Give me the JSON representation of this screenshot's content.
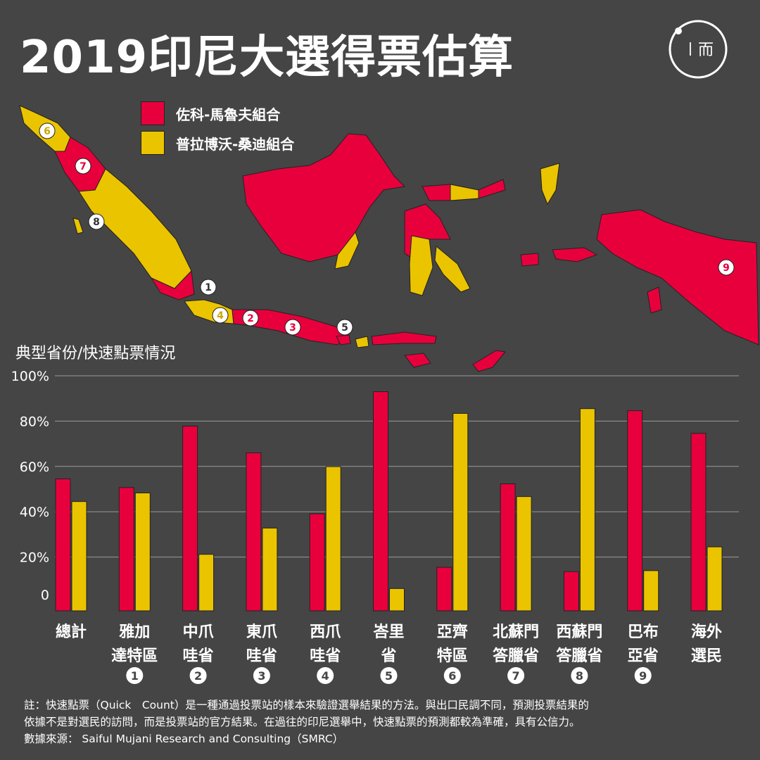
{
  "title": "2019印尼大選得票估算",
  "logo": {
    "icon": "initium-logo",
    "text": "〡而"
  },
  "colors": {
    "prabowo": "#e8003d",
    "jokowi": "#ebc400",
    "background": "#454545",
    "grid": "#9a9a9a"
  },
  "legend": [
    {
      "label": "佐科-馬魯夫組合",
      "color": "#e8003d"
    },
    {
      "label": "普拉博沃-桑迪組合",
      "color": "#ebc400"
    }
  ],
  "map_markers": [
    "1",
    "2",
    "3",
    "4",
    "5",
    "6",
    "7",
    "8",
    "9"
  ],
  "chart_subtitle": "典型省份/快速點票情況",
  "chart_data": {
    "type": "bar",
    "categories": [
      {
        "lines": [
          "總計"
        ],
        "marker": ""
      },
      {
        "lines": [
          "雅加",
          "達特區"
        ],
        "marker": "1"
      },
      {
        "lines": [
          "中爪",
          "哇省"
        ],
        "marker": "2"
      },
      {
        "lines": [
          "東爪",
          "哇省"
        ],
        "marker": "3"
      },
      {
        "lines": [
          "西爪",
          "哇省"
        ],
        "marker": "4"
      },
      {
        "lines": [
          "峇里",
          "省"
        ],
        "marker": "5"
      },
      {
        "lines": [
          "亞齊",
          "特區"
        ],
        "marker": "6"
      },
      {
        "lines": [
          "北蘇門",
          "答臘省"
        ],
        "marker": "7"
      },
      {
        "lines": [
          "西蘇門",
          "答臘省"
        ],
        "marker": "8"
      },
      {
        "lines": [
          "巴布",
          "亞省"
        ],
        "marker": "9"
      },
      {
        "lines": [
          "海外",
          "選民"
        ],
        "marker": ""
      }
    ],
    "series": [
      {
        "name": "佐科-馬魯夫組合",
        "color": "#e8003d",
        "values": [
          54.5,
          50.7,
          77.8,
          66.0,
          39.1,
          93.0,
          15.5,
          52.3,
          13.6,
          84.6,
          74.6
        ]
      },
      {
        "name": "普拉博沃-桑迪組合",
        "color": "#ebc400",
        "values": [
          44.5,
          48.3,
          21.2,
          32.8,
          59.9,
          6.1,
          83.4,
          46.7,
          85.5,
          14.0,
          24.5
        ]
      }
    ],
    "y_ticks": [
      "0",
      "20%",
      "40%",
      "60%",
      "80%",
      "100%"
    ],
    "ylim": [
      0,
      100
    ],
    "grid": true
  },
  "footnote": [
    "註：快速點票（Quick　Count）是一種通過投票站的樣本來驗證選舉結果的方法。與出口民調不同，預測投票結果的",
    "依據不是對選民的訪問，而是投票站的官方結果。在過往的印尼選舉中，快速點票的預測都較為準確，具有公信力。",
    "數據來源： Saiful Mujani Research and Consulting（SMRC）"
  ]
}
